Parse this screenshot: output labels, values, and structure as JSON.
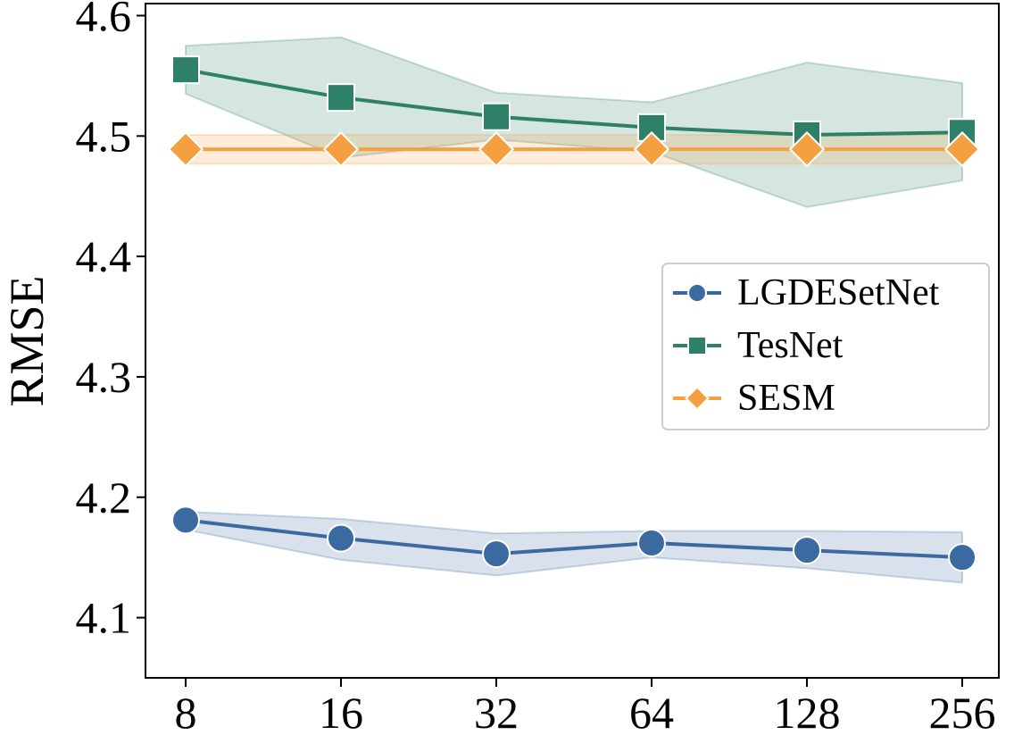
{
  "chart_data": {
    "type": "line",
    "title": "",
    "xlabel": "",
    "ylabel": "RMSE",
    "x": [
      "8",
      "16",
      "32",
      "64",
      "128",
      "256"
    ],
    "ylim": [
      4.05,
      4.61
    ],
    "yticks": [
      "4.1",
      "4.2",
      "4.3",
      "4.4",
      "4.5",
      "4.6"
    ],
    "grid": false,
    "legend_position": "center-right",
    "series": [
      {
        "name": "LGDESetNet",
        "color": "#3b6aa0",
        "marker": "circle",
        "values": [
          4.181,
          4.166,
          4.153,
          4.162,
          4.156,
          4.15
        ],
        "band_upper": [
          4.188,
          4.182,
          4.17,
          4.172,
          4.172,
          4.171
        ],
        "band_lower": [
          4.173,
          4.148,
          4.135,
          4.15,
          4.141,
          4.129
        ]
      },
      {
        "name": "TesNet",
        "color": "#2e8068",
        "marker": "square",
        "values": [
          4.555,
          4.532,
          4.516,
          4.507,
          4.501,
          4.503
        ],
        "band_upper": [
          4.575,
          4.582,
          4.536,
          4.528,
          4.561,
          4.544
        ],
        "band_lower": [
          4.535,
          4.482,
          4.497,
          4.487,
          4.441,
          4.463
        ]
      },
      {
        "name": "SESM",
        "color": "#f5a040",
        "marker": "diamond",
        "values": [
          4.489,
          4.489,
          4.489,
          4.489,
          4.489,
          4.489
        ],
        "band_upper": [
          4.501,
          4.501,
          4.501,
          4.501,
          4.501,
          4.501
        ],
        "band_lower": [
          4.477,
          4.477,
          4.477,
          4.477,
          4.477,
          4.477
        ]
      }
    ]
  }
}
